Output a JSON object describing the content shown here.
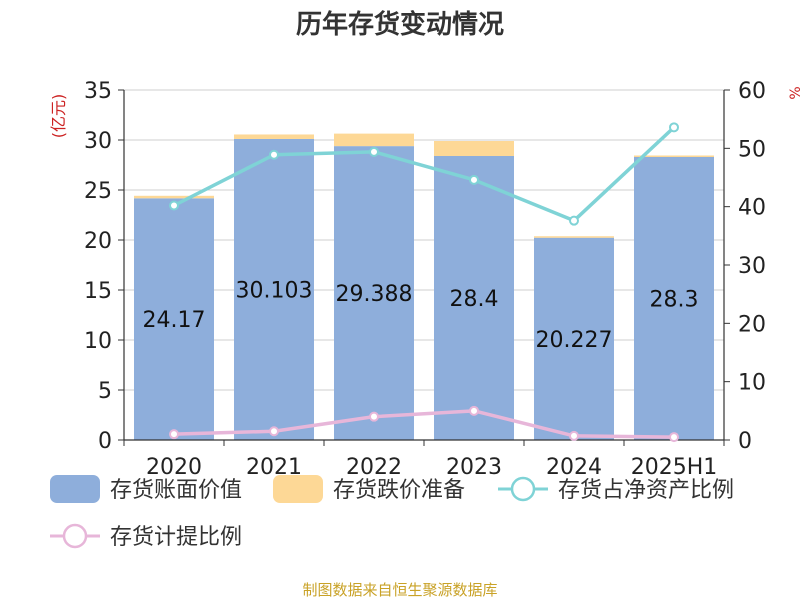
{
  "chart_data": {
    "type": "bar",
    "title": "历年存货变动情况",
    "categories": [
      "2020",
      "2021",
      "2022",
      "2023",
      "2024",
      "2025H1"
    ],
    "left_axis": {
      "label": "(亿元)",
      "ylim": [
        0,
        35
      ],
      "ticks": [
        "0",
        "5",
        "10",
        "15",
        "20",
        "25",
        "30",
        "35"
      ]
    },
    "right_axis": {
      "label": "%",
      "ylim": [
        0,
        60
      ],
      "ticks": [
        "0",
        "10",
        "20",
        "30",
        "40",
        "50",
        "60"
      ]
    },
    "grid": true,
    "legend_position": "bottom",
    "series": [
      {
        "name": "存货账面价值",
        "kind": "bar",
        "stack": "stack1",
        "axis": "left",
        "color": "#8eaedb",
        "values": [
          24.17,
          30.103,
          29.388,
          28.4,
          20.227,
          28.3
        ],
        "labels": [
          "24.17",
          "30.103",
          "29.388",
          "28.4",
          "20.227",
          "28.3"
        ]
      },
      {
        "name": "存货跌价准备",
        "kind": "bar",
        "stack": "stack1",
        "axis": "left",
        "color": "#fdd896",
        "values": [
          0.25,
          0.45,
          1.25,
          1.5,
          0.15,
          0.15
        ]
      },
      {
        "name": "存货占净资产比例",
        "kind": "line",
        "axis": "right",
        "color": "#7fd3d6",
        "values": [
          40.2,
          48.9,
          49.4,
          44.6,
          37.6,
          53.6
        ]
      },
      {
        "name": "存货计提比例",
        "kind": "line",
        "axis": "right",
        "color": "#e7b6d9",
        "values": [
          1.0,
          1.5,
          4.0,
          5.0,
          0.7,
          0.5
        ]
      }
    ]
  },
  "source_note": "制图数据来自恒生聚源数据库"
}
